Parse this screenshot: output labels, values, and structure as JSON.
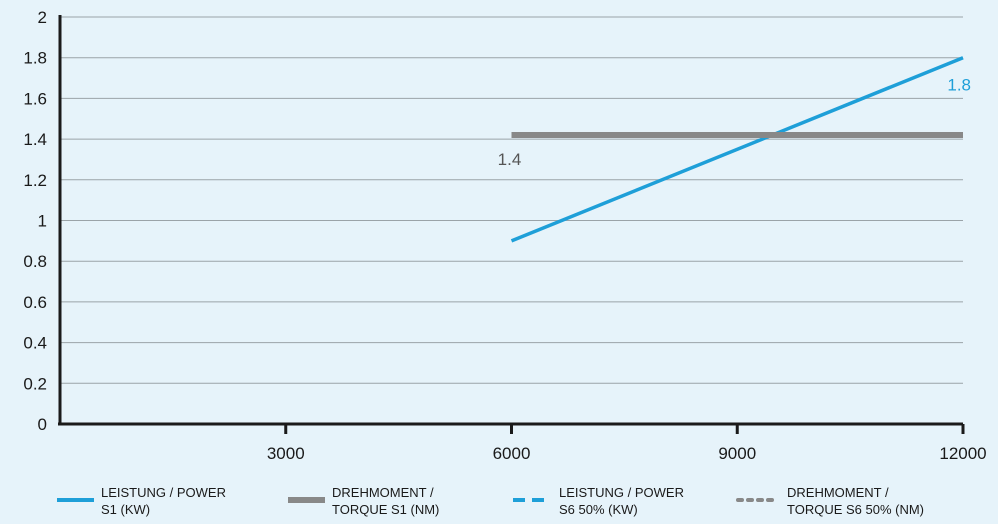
{
  "chart_data": {
    "type": "line",
    "title": "",
    "xlabel": "",
    "ylabel": "",
    "xlim": [
      0,
      12000
    ],
    "ylim": [
      0,
      2
    ],
    "x_ticks": [
      3000,
      6000,
      9000,
      12000
    ],
    "x_tick_labels": [
      "3000",
      "6000",
      "9000",
      "12000"
    ],
    "y_ticks": [
      0,
      0.2,
      0.4,
      0.6,
      0.8,
      1,
      1.2,
      1.4,
      1.6,
      1.8,
      2
    ],
    "y_tick_labels": [
      "0",
      "0.2",
      "0.4",
      "0.6",
      "0.8",
      "1",
      "1.2",
      "1.4",
      "1.6",
      "1.8",
      "2"
    ],
    "grid": "horizontal",
    "legend_position": "bottom",
    "series": [
      {
        "name": "LEISTUNG / POWER S1 (KW)",
        "legend_lines": [
          "LEISTUNG / POWER",
          "S1 (KW)"
        ],
        "color": "#1e9fd8",
        "style": "solid",
        "x": [
          6000,
          12000
        ],
        "y": [
          0.9,
          1.8
        ]
      },
      {
        "name": "DREHMOMENT / TORQUE S1 (NM)",
        "legend_lines": [
          "DREHMOMENT /",
          "TORQUE S1 (NM)"
        ],
        "color": "#888888",
        "style": "solid-thick",
        "x": [
          6000,
          12000
        ],
        "y": [
          1.42,
          1.42
        ]
      },
      {
        "name": "LEISTUNG / POWER S6 50% (KW)",
        "legend_lines": [
          "LEISTUNG / POWER",
          "S6 50% (KW)"
        ],
        "color": "#1e9fd8",
        "style": "dashed",
        "x": [],
        "y": []
      },
      {
        "name": "DREHMOMENT / TORQUE S6 50% (NM)",
        "legend_lines": [
          "DREHMOMENT /",
          "TORQUE S6 50% (NM)"
        ],
        "color": "#888888",
        "style": "dotted",
        "x": [],
        "y": []
      }
    ],
    "annotations": [
      {
        "text": "1.4",
        "x": 6000,
        "y": 1.42,
        "color": "#555555"
      },
      {
        "text": "1.8",
        "x": 12000,
        "y": 1.8,
        "color": "#1e9fd8"
      }
    ]
  },
  "colors": {
    "background": "#e6f3fa",
    "axis": "#1a1a1a",
    "grid": "#9aa3a8",
    "power": "#1e9fd8",
    "torque": "#888888"
  }
}
